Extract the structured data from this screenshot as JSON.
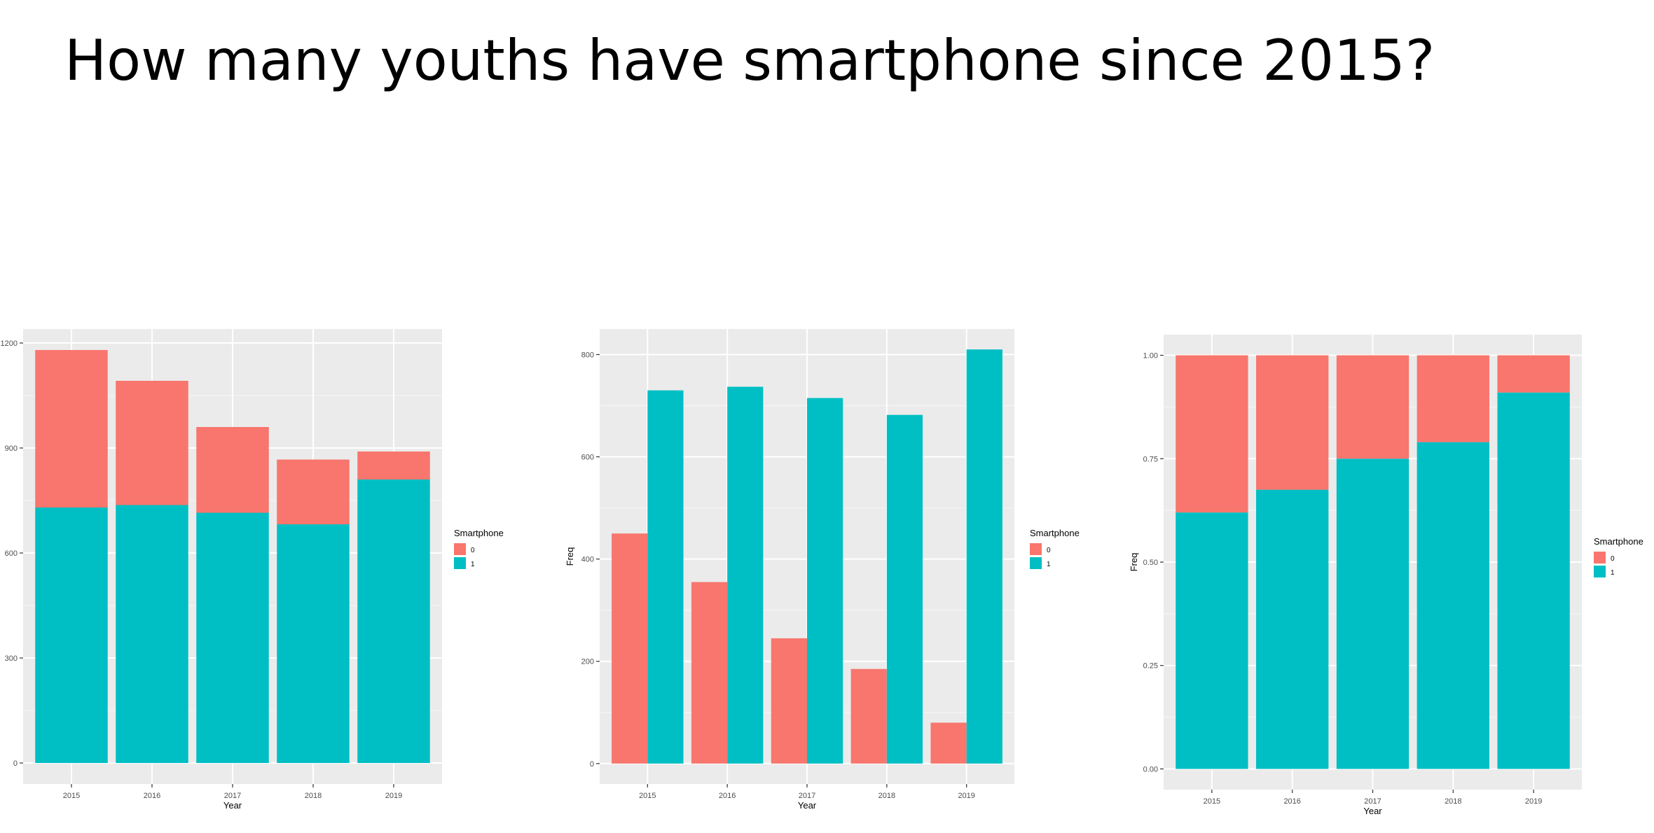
{
  "slide": {
    "title": "How many youths have smartphone since 2015?"
  },
  "colors": {
    "panel": "#ebebeb",
    "grid": "#ffffff",
    "tick_text": "#4d4d4d",
    "series_0": "#f8766d",
    "series_1": "#00bfc4"
  },
  "chart_data": [
    {
      "type": "bar",
      "stacking": "stacked",
      "categories": [
        "2015",
        "2016",
        "2017",
        "2018",
        "2019"
      ],
      "series": [
        {
          "name": "0",
          "values": [
            450,
            355,
            245,
            185,
            80
          ]
        },
        {
          "name": "1",
          "values": [
            730,
            737,
            715,
            682,
            810
          ]
        }
      ],
      "xlabel": "Year",
      "ylabel": "Freq",
      "ylim": [
        -60,
        1240
      ],
      "yticks": [
        0,
        300,
        600,
        900,
        1200
      ],
      "ytick_labels": [
        "0",
        "300",
        "600",
        "900",
        "1200"
      ],
      "legend": {
        "title": "Smartphone",
        "position": "right"
      },
      "grid": true
    },
    {
      "type": "bar",
      "stacking": "dodge",
      "categories": [
        "2015",
        "2016",
        "2017",
        "2018",
        "2019"
      ],
      "series": [
        {
          "name": "0",
          "values": [
            450,
            355,
            245,
            185,
            80
          ]
        },
        {
          "name": "1",
          "values": [
            730,
            737,
            715,
            682,
            810
          ]
        }
      ],
      "xlabel": "Year",
      "ylabel": "Freq",
      "ylim": [
        -40,
        850
      ],
      "yticks": [
        0,
        200,
        400,
        600,
        800
      ],
      "ytick_labels": [
        "0",
        "200",
        "400",
        "600",
        "800"
      ],
      "legend": {
        "title": "Smartphone",
        "position": "right"
      },
      "grid": true
    },
    {
      "type": "bar",
      "stacking": "fill",
      "categories": [
        "2015",
        "2016",
        "2017",
        "2018",
        "2019"
      ],
      "series": [
        {
          "name": "0",
          "values": [
            0.38,
            0.325,
            0.25,
            0.21,
            0.09
          ]
        },
        {
          "name": "1",
          "values": [
            0.62,
            0.675,
            0.75,
            0.79,
            0.91
          ]
        }
      ],
      "xlabel": "Year",
      "ylabel": "Freq",
      "ylim": [
        -0.05,
        1.05
      ],
      "yticks": [
        0,
        0.25,
        0.5,
        0.75,
        1.0
      ],
      "ytick_labels": [
        "0.00",
        "0.25",
        "0.50",
        "0.75",
        "1.00"
      ],
      "legend": {
        "title": "Smartphone",
        "position": "right"
      },
      "grid": true
    }
  ]
}
